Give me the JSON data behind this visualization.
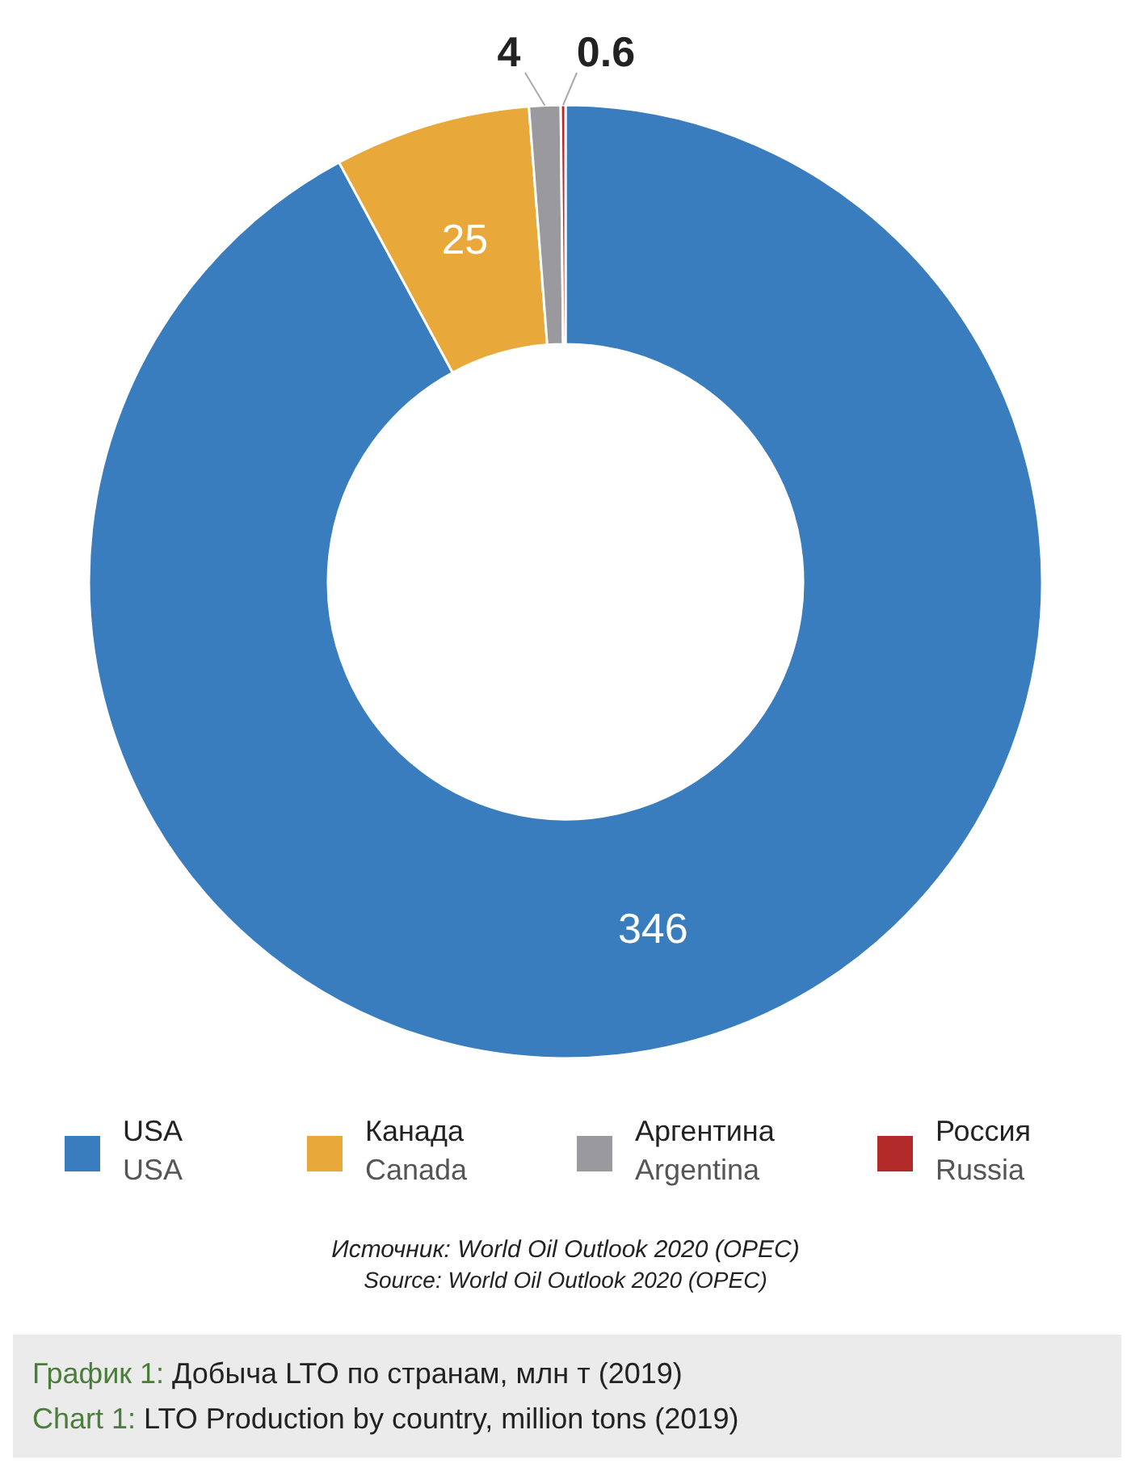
{
  "chart_data": {
    "type": "donut",
    "title": "График 1: Добыча LTO по странам, млн т (2019)",
    "subtitle": "Chart 1: LTO Production by country, million tons (2019)",
    "categories": [
      "USA\nUSA",
      "Канада\nCanada",
      "Аргентина\nArgentina",
      "Россия\nRussia"
    ],
    "values": [
      346,
      25,
      4,
      0.6
    ],
    "colors": [
      "#3a7dbf",
      "#e9a93a",
      "#9a9a9e",
      "#b22a2a"
    ],
    "data_labels": true,
    "legend": "bottom",
    "annotations": [
      "Источник: World Oil Outlook 2020 (OPEC)",
      "Source: World Oil Outlook 2020 (OPEC)"
    ]
  }
}
